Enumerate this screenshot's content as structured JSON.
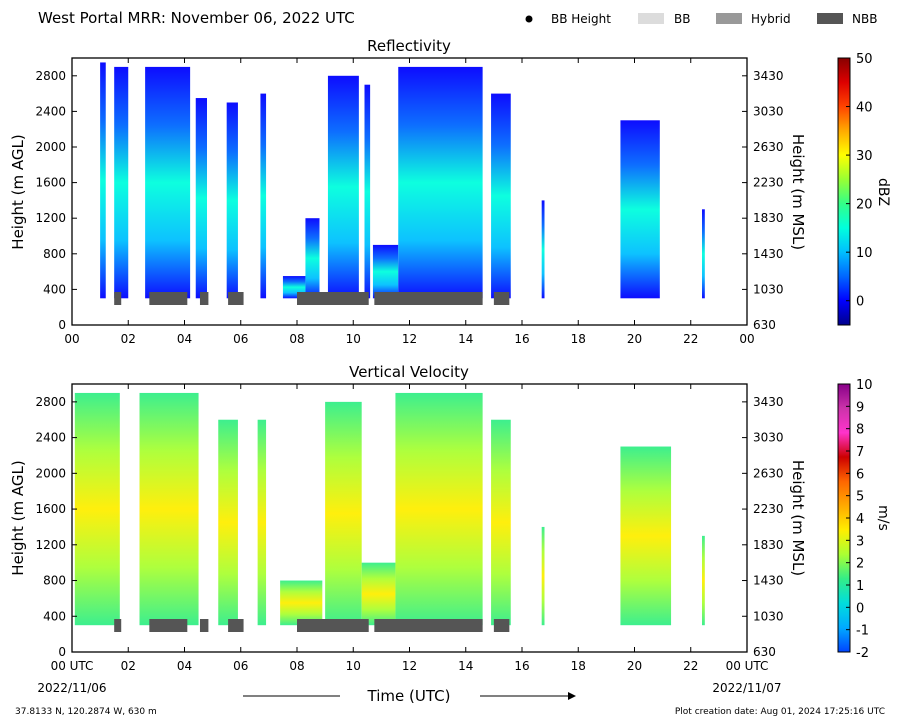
{
  "header": {
    "title": "West Portal MRR:  November 06, 2022 UTC",
    "legend": [
      {
        "label": "BB Height",
        "symbol": "dot",
        "color": "#000000"
      },
      {
        "label": "BB",
        "symbol": "box",
        "color": "#dcdcdc"
      },
      {
        "label": "Hybrid",
        "symbol": "box",
        "color": "#999999"
      },
      {
        "label": "NBB",
        "symbol": "box",
        "color": "#555555"
      }
    ]
  },
  "footer": {
    "location": "37.8133 N, 120.2874 W, 630 m",
    "creation": "Plot creation date: Aug 01, 2024 17:25:16 UTC",
    "xlabel": "Time (UTC)",
    "start_date": "2022/11/06",
    "end_date": "2022/11/07"
  },
  "chart_data": [
    {
      "type": "heatmap",
      "title": "Reflectivity",
      "ylabel": "Height (m AGL)",
      "ylabel_right": "Height (m MSL)",
      "xlim": [
        0,
        24
      ],
      "ylim": [
        0,
        3000
      ],
      "x_ticks": [
        "00",
        "02",
        "04",
        "06",
        "08",
        "10",
        "12",
        "14",
        "16",
        "18",
        "20",
        "22",
        "00"
      ],
      "y_ticks": [
        0,
        400,
        800,
        1200,
        1600,
        2000,
        2400,
        2800
      ],
      "y_ticks_right": [
        630,
        1030,
        1430,
        1830,
        2230,
        2630,
        3030,
        3430
      ],
      "colorbar": {
        "label": "dBZ",
        "range": [
          -5,
          50
        ],
        "ticks": [
          50,
          40,
          30,
          20,
          10,
          0
        ]
      },
      "precip_bands": [
        {
          "start": 1.0,
          "end": 1.2,
          "top": 2950
        },
        {
          "start": 1.5,
          "end": 2.0,
          "top": 2900
        },
        {
          "start": 2.6,
          "end": 4.2,
          "top": 2900
        },
        {
          "start": 4.4,
          "end": 4.8,
          "top": 2550
        },
        {
          "start": 5.5,
          "end": 5.9,
          "top": 2500
        },
        {
          "start": 6.7,
          "end": 6.9,
          "top": 2600
        },
        {
          "start": 7.5,
          "end": 8.3,
          "top": 550
        },
        {
          "start": 8.3,
          "end": 8.8,
          "top": 1200
        },
        {
          "start": 9.1,
          "end": 10.2,
          "top": 2800
        },
        {
          "start": 10.4,
          "end": 10.6,
          "top": 2700
        },
        {
          "start": 10.7,
          "end": 11.6,
          "top": 900
        },
        {
          "start": 11.6,
          "end": 14.6,
          "top": 2900
        },
        {
          "start": 14.9,
          "end": 15.6,
          "top": 2600
        },
        {
          "start": 16.7,
          "end": 16.8,
          "top": 1400
        },
        {
          "start": 19.5,
          "end": 20.9,
          "top": 2300
        },
        {
          "start": 22.4,
          "end": 22.5,
          "top": 1300
        }
      ],
      "bb_segments": [
        {
          "start": 1.5,
          "end": 1.75,
          "type": "NBB"
        },
        {
          "start": 2.75,
          "end": 4.1,
          "type": "NBB"
        },
        {
          "start": 4.55,
          "end": 4.85,
          "type": "NBB"
        },
        {
          "start": 5.55,
          "end": 6.1,
          "type": "NBB"
        },
        {
          "start": 8.0,
          "end": 10.55,
          "type": "NBB"
        },
        {
          "start": 10.75,
          "end": 14.6,
          "type": "NBB"
        },
        {
          "start": 15.0,
          "end": 15.55,
          "type": "NBB"
        }
      ]
    },
    {
      "type": "heatmap",
      "title": "Vertical Velocity",
      "ylabel": "Height (m AGL)",
      "ylabel_right": "Height (m MSL)",
      "xlim": [
        0,
        24
      ],
      "ylim": [
        0,
        3000
      ],
      "x_ticks": [
        "00 UTC",
        "02",
        "04",
        "06",
        "08",
        "10",
        "12",
        "14",
        "16",
        "18",
        "20",
        "22",
        "00 UTC"
      ],
      "y_ticks": [
        0,
        400,
        800,
        1200,
        1600,
        2000,
        2400,
        2800
      ],
      "y_ticks_right": [
        630,
        1030,
        1430,
        1830,
        2230,
        2630,
        3030,
        3430
      ],
      "colorbar": {
        "label": "m/s",
        "range": [
          -2,
          10
        ],
        "ticks": [
          10,
          9,
          8,
          7,
          6,
          5,
          4,
          3,
          2,
          1,
          0,
          -1,
          -2
        ]
      },
      "precip_bands": [
        {
          "start": 0.1,
          "end": 1.7,
          "top": 2900
        },
        {
          "start": 2.4,
          "end": 4.5,
          "top": 2900
        },
        {
          "start": 5.2,
          "end": 5.9,
          "top": 2600
        },
        {
          "start": 6.6,
          "end": 6.9,
          "top": 2600
        },
        {
          "start": 7.4,
          "end": 8.9,
          "top": 800
        },
        {
          "start": 9.0,
          "end": 10.3,
          "top": 2800
        },
        {
          "start": 10.3,
          "end": 11.5,
          "top": 1000
        },
        {
          "start": 11.5,
          "end": 14.6,
          "top": 2900
        },
        {
          "start": 14.9,
          "end": 15.6,
          "top": 2600
        },
        {
          "start": 16.7,
          "end": 16.8,
          "top": 1400
        },
        {
          "start": 19.5,
          "end": 21.3,
          "top": 2300
        },
        {
          "start": 22.4,
          "end": 22.5,
          "top": 1300
        }
      ],
      "bb_segments": [
        {
          "start": 1.5,
          "end": 1.75,
          "type": "NBB"
        },
        {
          "start": 2.75,
          "end": 4.1,
          "type": "NBB"
        },
        {
          "start": 4.55,
          "end": 4.85,
          "type": "NBB"
        },
        {
          "start": 5.55,
          "end": 6.1,
          "type": "NBB"
        },
        {
          "start": 8.0,
          "end": 10.55,
          "type": "NBB"
        },
        {
          "start": 10.75,
          "end": 14.6,
          "type": "NBB"
        },
        {
          "start": 15.0,
          "end": 15.55,
          "type": "NBB"
        }
      ]
    }
  ],
  "colors": {
    "nbb": "#555555",
    "refl_scale": [
      "#00008b",
      "#0000ff",
      "#0066ff",
      "#00bfff",
      "#00ffdd",
      "#33ff88",
      "#99ff33",
      "#ffff00",
      "#ffaa00",
      "#ff4400",
      "#dd0000",
      "#880000"
    ],
    "vel_scale": [
      "#0044ff",
      "#00aaff",
      "#00dddd",
      "#33ee88",
      "#aaff33",
      "#ffee00",
      "#ffaa00",
      "#ff6600",
      "#cc0000",
      "#ff33cc",
      "#cc33aa",
      "#880088"
    ]
  }
}
